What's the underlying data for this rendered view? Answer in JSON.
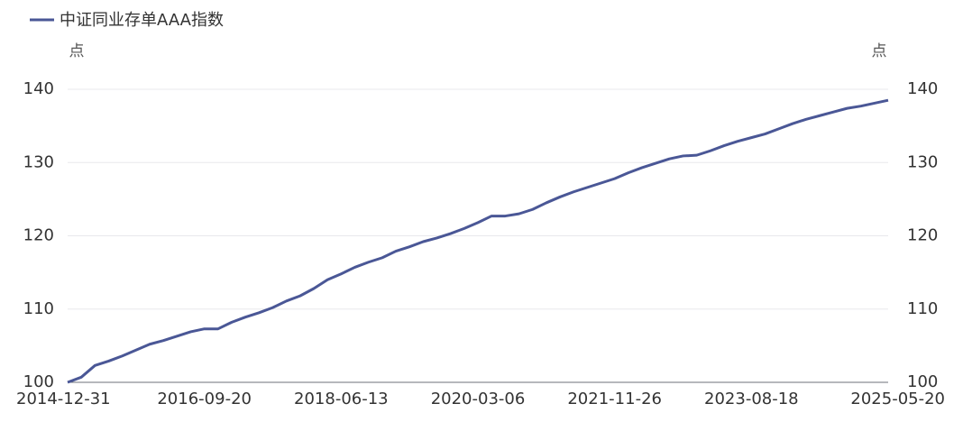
{
  "chart_data": {
    "type": "line",
    "y_unit": "点",
    "y2_unit": "点",
    "categories": [
      "2014-12-31",
      null,
      null,
      null,
      null,
      null,
      null,
      null,
      null,
      null,
      "2016-09-20",
      null,
      null,
      null,
      null,
      null,
      null,
      null,
      null,
      null,
      "2018-06-13",
      null,
      null,
      null,
      null,
      null,
      null,
      null,
      null,
      null,
      "2020-03-06",
      null,
      null,
      null,
      null,
      null,
      null,
      null,
      null,
      null,
      "2021-11-26",
      null,
      null,
      null,
      null,
      null,
      null,
      null,
      null,
      null,
      "2023-08-18",
      null,
      null,
      null,
      null,
      null,
      null,
      null,
      null,
      null,
      "2025-05-20"
    ],
    "series": [
      {
        "name": "中证同业存单AAA指数",
        "color": "#4a5796",
        "values": [
          100.0,
          100.7,
          102.3,
          102.9,
          103.6,
          104.4,
          105.2,
          105.7,
          106.3,
          106.9,
          107.3,
          107.3,
          108.2,
          108.9,
          109.5,
          110.2,
          111.1,
          111.8,
          112.8,
          114.0,
          114.8,
          115.7,
          116.4,
          117.0,
          117.9,
          118.5,
          119.2,
          119.7,
          120.3,
          121.0,
          121.8,
          122.7,
          122.7,
          123.0,
          123.6,
          124.5,
          125.3,
          126.0,
          126.6,
          127.2,
          127.8,
          128.6,
          129.3,
          129.9,
          130.5,
          130.9,
          131.0,
          131.6,
          132.3,
          132.9,
          133.4,
          133.9,
          134.6,
          135.3,
          135.9,
          136.4,
          136.9,
          137.4,
          137.7,
          138.1,
          138.5
        ]
      }
    ],
    "ylim": [
      100,
      140
    ],
    "yticks": [
      100,
      110,
      120,
      130,
      140
    ],
    "y2lim": [
      100,
      140
    ],
    "y2ticks": [
      100,
      110,
      120,
      130,
      140
    ],
    "grid": true
  }
}
